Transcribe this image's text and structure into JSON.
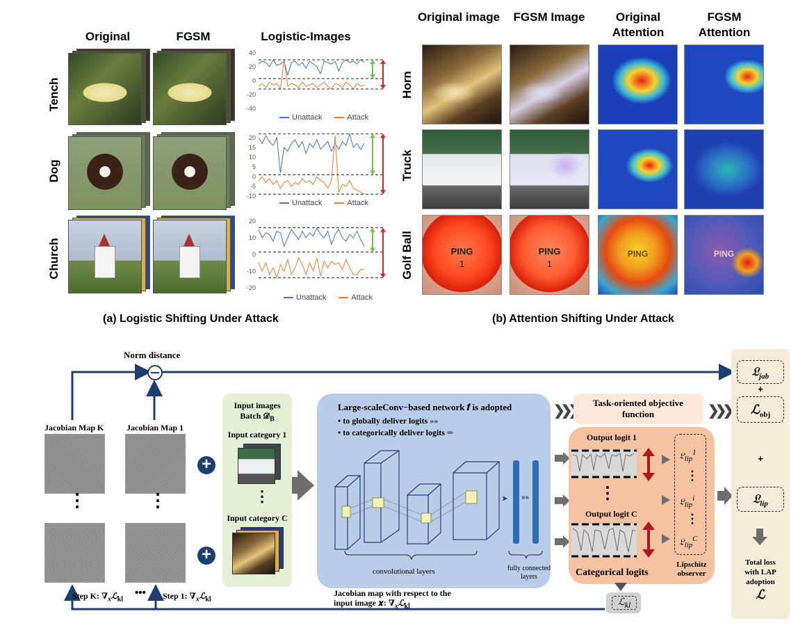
{
  "top_left": {
    "col_headers": [
      "Original",
      "FGSM",
      "Logistic-Images"
    ],
    "rows": [
      {
        "label": "Tench",
        "ticks": [
          "40",
          "20",
          "0",
          "-20",
          "-40"
        ],
        "unattack": [
          24,
          28,
          26,
          20,
          30,
          22,
          24,
          28,
          8,
          26,
          28,
          22,
          26,
          18,
          28,
          24,
          20,
          10,
          28,
          26,
          24,
          28,
          14,
          26,
          30,
          26,
          28,
          24,
          30,
          26
        ],
        "attack": [
          -8,
          -4,
          -10,
          -2,
          -6,
          -4,
          -12,
          30,
          -8,
          -4,
          -6,
          -10,
          -2,
          -8,
          -6,
          -4,
          -10,
          -6,
          -2,
          -8,
          -12,
          -4,
          -6,
          -10,
          -2,
          -6,
          -12,
          -4,
          -8,
          -6
        ]
      },
      {
        "label": "Dog",
        "ticks": [
          "20",
          "15",
          "10",
          "5",
          "0",
          "-5",
          "-10"
        ],
        "unattack": [
          20,
          17,
          21,
          18,
          16,
          20,
          2,
          15,
          13,
          17,
          19,
          15,
          18,
          12,
          17,
          15,
          19,
          14,
          16,
          18,
          13,
          17,
          14,
          18,
          16,
          22,
          15,
          17,
          14,
          17
        ],
        "attack": [
          -2,
          0,
          -3,
          -1,
          -4,
          -2,
          -6,
          -3,
          -2,
          -5,
          -3,
          -4,
          -1,
          -3,
          -2,
          -4,
          0,
          -2,
          -3,
          -6,
          -2,
          21,
          -8,
          -4,
          -5,
          -2,
          -6,
          -7,
          -8,
          -9
        ]
      },
      {
        "label": "Church",
        "ticks": [
          "20",
          "10",
          "0",
          "-10",
          "-20"
        ],
        "unattack": [
          15,
          10,
          13,
          12,
          8,
          14,
          13,
          5,
          10,
          15,
          12,
          9,
          14,
          10,
          13,
          11,
          16,
          12,
          10,
          14,
          6,
          12,
          15,
          10,
          8,
          12,
          10,
          14,
          9,
          5
        ],
        "attack": [
          -5,
          -10,
          -5,
          -12,
          -8,
          -14,
          -6,
          -10,
          -3,
          -12,
          -8,
          -2,
          -6,
          -12,
          -5,
          -10,
          -2,
          -13,
          -4,
          -8,
          -4,
          -6,
          -5,
          -9,
          -3,
          -8,
          -12,
          -12,
          -9,
          -9
        ]
      }
    ],
    "legend": {
      "unattack": "Unattack",
      "attack": "Attack"
    },
    "caption": "(a) Logistic Shifting Under Attack",
    "colors": {
      "unattack": "#4472c4",
      "attack": "#ed7d31",
      "green_arrow": "#70c548",
      "red_arrow": "#e0202a"
    }
  },
  "top_right": {
    "col_headers": [
      "Original image",
      "FGSM Image",
      "Original Attention",
      "FGSM Attention"
    ],
    "row_labels": [
      "Horn",
      "Truck",
      "Golf Ball"
    ],
    "golf_text": "PING",
    "golf_num": "1",
    "caption": "(b) Attention Shifting Under Attack"
  },
  "bottom": {
    "norm_distance": "Norm distance",
    "jacobian_k": "Jacobian Map K",
    "jacobian_1": "Jacobian Map 1",
    "vdots": "⋮",
    "step_k": "Step K: ∇",
    "step_1": "Step 1: ∇",
    "grad_sub": "x",
    "loss_kl": "ℒ",
    "kl_sub": "kl",
    "dots_mid": "•••",
    "input_images": "Input images",
    "batch": "Batch 𝒟",
    "batch_sub": "B",
    "input_cat_1": "Input category 1",
    "input_cat_c": "Input category C",
    "network_title": "Large-scaleConv−based network 𝒇 is adopted",
    "bullet_1": "•  to globally deliver logits",
    "bullet_2": "•  to categorically deliver logits",
    "conv_layers": "convolutional layers",
    "fc_layers": "fully connected layers",
    "jacobian_note_1": "Jacobian map with respect to the",
    "jacobian_note_2": "input image 𝒙: ∇",
    "task_objective": "Task-oriented objective function",
    "output_logit_1": "Output logit 1",
    "output_logit_c": "Output logit C",
    "categorical_logits": "Categorical logits",
    "lip_observer": "Lipschitz observer",
    "lip_sup_1": "1",
    "lip_sup_i": "i",
    "lip_sup_c": "C",
    "l_jab": "𝔏",
    "l_jab_sub": "jab",
    "plus": "+",
    "l_obj": "ℒ",
    "l_obj_sub": "obj",
    "l_lip": "𝔏",
    "l_lip_sub": "lip",
    "l_lip_small": "𝔏",
    "lip_sub": "lip",
    "total_loss_1": "Total loss",
    "total_loss_2": "with LAP",
    "total_loss_3": "adoption",
    "total_loss_symbol": "ℒ",
    "colors": {
      "dark_blue": "#1f3e70",
      "green_panel": "#e3f0d6",
      "blue_panel": "#b9cce8",
      "peach": "#fbe8da",
      "salmon": "#f6c3a2",
      "beige": "#f4ecd8",
      "grey_arrow": "#707070"
    }
  }
}
